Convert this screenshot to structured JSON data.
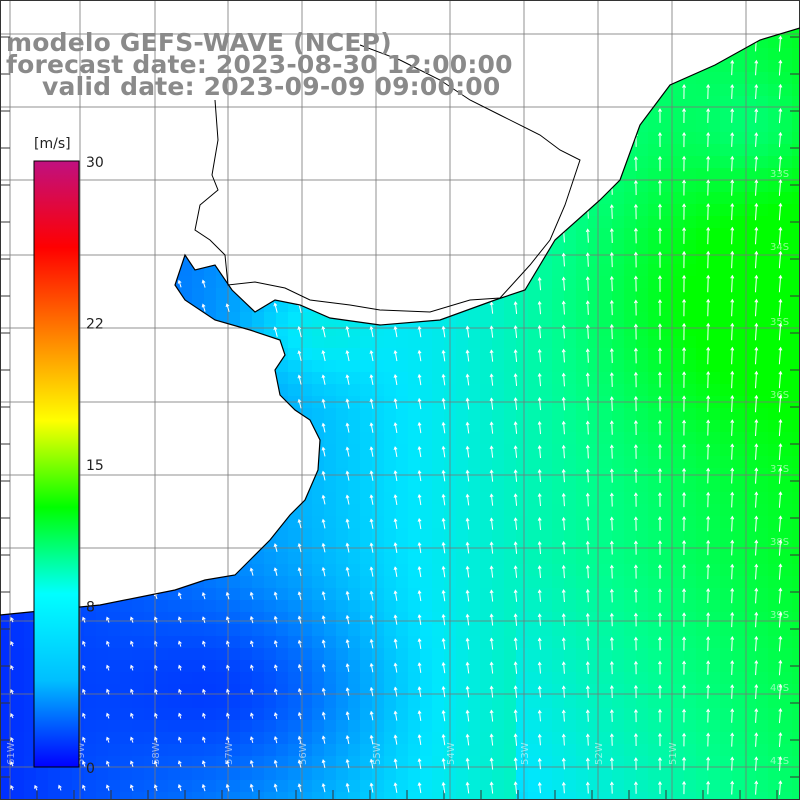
{
  "header": {
    "line1": "modelo GEFS-WAVE (NCEP)",
    "line2": "forecast date: 2023-08-30 12:00:00",
    "line3": "valid date: 2023-09-09 09:00:00"
  },
  "colorbar": {
    "unit": "[m/s]",
    "ticks": [
      "30",
      "22",
      "15",
      "8",
      "0"
    ],
    "tick_values": [
      30,
      22,
      15,
      8,
      0
    ],
    "min": 0,
    "max": 30,
    "colors": [
      "#0000ff",
      "#00bfff",
      "#00ffff",
      "#00ff00",
      "#ffff00",
      "#ff8000",
      "#ff0000",
      "#c01080"
    ]
  },
  "map": {
    "variable": "wind speed",
    "field_range": [
      0,
      15
    ],
    "land_color": "#ffffff",
    "coast_color": "#000000",
    "grid_color": "#777777",
    "arrow_color": "#ffffff",
    "lon_labels": [
      "61W",
      "59W",
      "58W",
      "57W",
      "56W",
      "55W",
      "54W",
      "53W",
      "52W",
      "51W"
    ],
    "lat_labels": [
      "33S",
      "34S",
      "35S",
      "36S",
      "37S",
      "38S",
      "39S",
      "40S",
      "41S"
    ]
  }
}
